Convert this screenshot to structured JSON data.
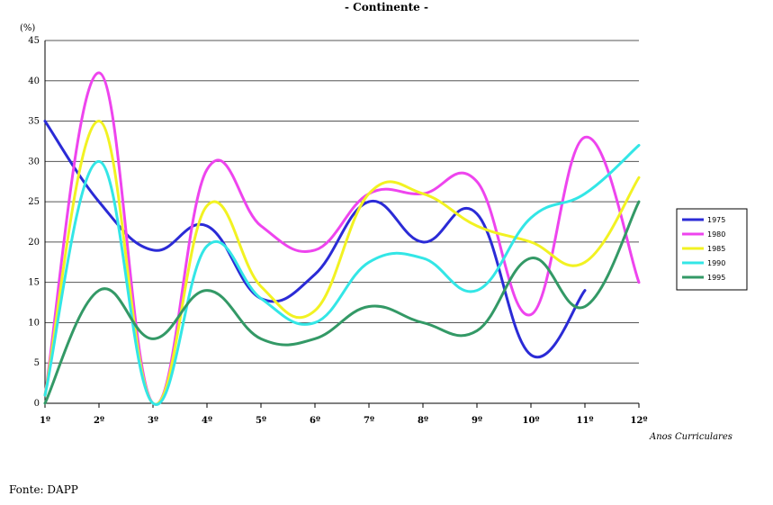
{
  "chart_data": {
    "type": "line",
    "title": "- Continente -",
    "ylabel": "(%)",
    "xlabel": "Anos Curriculares",
    "ylim": [
      0,
      45
    ],
    "yticks": [
      0,
      5,
      10,
      15,
      20,
      25,
      30,
      35,
      40,
      45
    ],
    "categories": [
      "1º",
      "2º",
      "3º",
      "4º",
      "5º",
      "6º",
      "7º",
      "8º",
      "9º",
      "10º",
      "11º",
      "12º"
    ],
    "grid": true,
    "legend_position": "right",
    "series": [
      {
        "name": "1975",
        "color": "#2b2bd6",
        "values": [
          35,
          25,
          19,
          22,
          13,
          16,
          25,
          20,
          23.5,
          6,
          14,
          null
        ]
      },
      {
        "name": "1980",
        "color": "#ee44ee",
        "values": [
          1,
          41,
          0,
          29,
          22,
          19,
          26,
          26,
          27.5,
          11,
          33,
          15
        ]
      },
      {
        "name": "1985",
        "color": "#f2f222",
        "values": [
          1,
          35,
          0,
          24.5,
          14.5,
          11.5,
          26,
          26,
          22,
          20,
          17.5,
          28
        ]
      },
      {
        "name": "1990",
        "color": "#33e6e6",
        "values": [
          1,
          30,
          0,
          19.5,
          13,
          10,
          17.5,
          18,
          14,
          23,
          26,
          32
        ]
      },
      {
        "name": "1995",
        "color": "#339966",
        "values": [
          0,
          14,
          8,
          14,
          8,
          8,
          12,
          10,
          9,
          18,
          12,
          25
        ]
      }
    ]
  },
  "source": "Fonte: DAPP"
}
